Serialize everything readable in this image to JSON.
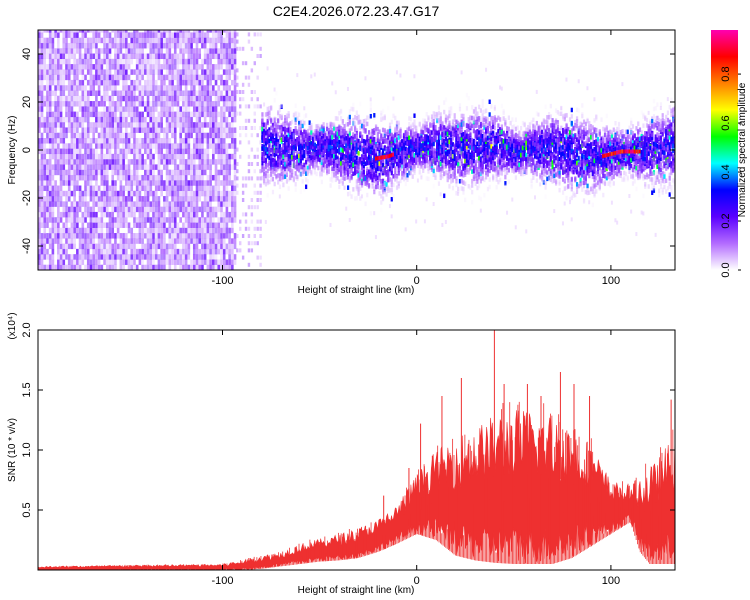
{
  "title": "C2E4.2026.072.23.47.G17",
  "chart_data": [
    {
      "type": "heatmap",
      "xlabel": "Height of straight line (km)",
      "ylabel": "Frequency (Hz)",
      "xlim": [
        -195,
        133
      ],
      "ylim": [
        -50,
        50
      ],
      "xticks": [
        -100,
        0,
        100
      ],
      "yticks": [
        -40,
        -20,
        0,
        20,
        40
      ],
      "colorbar": {
        "label": "Normalized spectral amplitude",
        "range": [
          0,
          0.98
        ],
        "ticks": [
          0.0,
          0.2,
          0.4,
          0.6,
          0.8
        ],
        "tick_labels": [
          "0.0",
          "0.2",
          "0.4",
          "0.6",
          "0.8"
        ],
        "colormap": [
          "#ffffff",
          "#b36bff",
          "#5a00ff",
          "#0000ff",
          "#00ffff",
          "#00ff00",
          "#ffff00",
          "#ff8000",
          "#ff0000",
          "#ff00b0"
        ]
      },
      "regions": [
        {
          "name": "noise",
          "x": [
            -195,
            -93
          ],
          "freq_range": [
            -50,
            50
          ],
          "amplitude": 0.1
        },
        {
          "name": "fade",
          "x": [
            -93,
            -80
          ],
          "freq_range": [
            -50,
            50
          ],
          "amplitude": 0.05
        },
        {
          "name": "signal",
          "x": [
            -80,
            133
          ],
          "center_freq_hz": 0,
          "amplitude": 0.25
        }
      ],
      "ridge": {
        "x": [
          -90,
          -80,
          -70,
          -60,
          -50,
          -40,
          -30,
          -22,
          -15,
          -8,
          0,
          10,
          20,
          30,
          40,
          50,
          60,
          70,
          80,
          88,
          95,
          105,
          115,
          125,
          133
        ],
        "freq": [
          3,
          2,
          1,
          0,
          1,
          0,
          -2,
          -4,
          -3,
          -1,
          1,
          2,
          0,
          1,
          2,
          -1,
          0,
          1,
          -2,
          -3,
          -3,
          -1,
          -1,
          0,
          3
        ]
      },
      "peak_segments": [
        [
          -22,
          -12
        ],
        [
          95,
          115
        ]
      ]
    },
    {
      "type": "line",
      "xlabel": "Height of straight line (km)",
      "ylabel": "SNR (10 * v/v)",
      "y_scale_note": "(x10⁴)",
      "xlim": [
        -195,
        133
      ],
      "ylim": [
        0,
        2.0
      ],
      "xticks": [
        -100,
        0,
        100
      ],
      "yticks": [
        0.5,
        1.0,
        1.5,
        2.0
      ],
      "ytick_labels": [
        "0.5",
        "1.0",
        "1.5",
        "2.0"
      ],
      "series": [
        {
          "name": "SNR",
          "color": "#ee3030",
          "envelope_x": [
            -195,
            -150,
            -100,
            -90,
            -80,
            -70,
            -60,
            -50,
            -40,
            -30,
            -20,
            -10,
            0,
            10,
            20,
            30,
            40,
            50,
            60,
            70,
            80,
            90,
            100,
            110,
            115,
            120,
            125,
            133
          ],
          "envelope_min": [
            0.0,
            0.0,
            0.0,
            0.0,
            0.01,
            0.03,
            0.05,
            0.07,
            0.08,
            0.1,
            0.15,
            0.22,
            0.3,
            0.25,
            0.12,
            0.08,
            0.06,
            0.05,
            0.05,
            0.05,
            0.1,
            0.2,
            0.3,
            0.4,
            0.15,
            0.05,
            0.05,
            0.05
          ],
          "envelope_max": [
            0.03,
            0.04,
            0.05,
            0.08,
            0.12,
            0.15,
            0.22,
            0.26,
            0.3,
            0.35,
            0.42,
            0.55,
            0.8,
            1.0,
            1.12,
            1.2,
            1.3,
            1.35,
            1.35,
            1.3,
            1.2,
            1.05,
            0.75,
            0.7,
            0.8,
            0.85,
            0.95,
            1.15
          ],
          "spikes": [
            [
              -17,
              0.62
            ],
            [
              -4,
              0.85
            ],
            [
              2,
              1.22
            ],
            [
              13,
              1.45
            ],
            [
              23,
              1.6
            ],
            [
              40,
              2.0
            ],
            [
              45,
              1.55
            ],
            [
              57,
              1.55
            ],
            [
              64,
              1.45
            ],
            [
              74,
              1.65
            ],
            [
              81,
              1.55
            ],
            [
              89,
              1.45
            ],
            [
              131,
              1.42
            ]
          ]
        }
      ]
    }
  ]
}
